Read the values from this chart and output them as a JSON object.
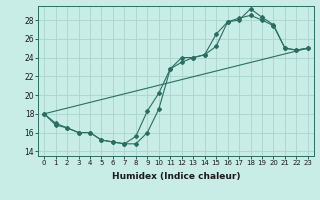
{
  "xlabel": "Humidex (Indice chaleur)",
  "bg_color": "#c8ece6",
  "line_color": "#2a6e62",
  "grid_color": "#a8d4cc",
  "xlim": [
    -0.5,
    23.5
  ],
  "ylim": [
    13.5,
    29.5
  ],
  "yticks": [
    14,
    16,
    18,
    20,
    22,
    24,
    26,
    28
  ],
  "xticks": [
    0,
    1,
    2,
    3,
    4,
    5,
    6,
    7,
    8,
    9,
    10,
    11,
    12,
    13,
    14,
    15,
    16,
    17,
    18,
    19,
    20,
    21,
    22,
    23
  ],
  "series1_x": [
    0,
    1,
    2,
    3,
    4,
    5,
    6,
    7,
    8,
    9,
    10,
    11,
    12,
    13,
    14,
    15,
    16,
    17,
    18,
    19,
    20,
    21,
    22,
    23
  ],
  "series1_y": [
    18.0,
    17.0,
    16.5,
    16.0,
    16.0,
    15.2,
    15.0,
    14.8,
    14.8,
    16.0,
    18.5,
    22.8,
    23.5,
    24.0,
    24.3,
    25.2,
    27.8,
    28.0,
    29.2,
    28.3,
    27.5,
    25.0,
    24.8,
    25.0
  ],
  "series2_x": [
    0,
    1,
    2,
    3,
    4,
    5,
    6,
    7,
    8,
    9,
    10,
    11,
    12,
    13,
    14,
    15,
    16,
    17,
    18,
    19,
    20,
    21,
    22,
    23
  ],
  "series2_y": [
    18.0,
    16.8,
    16.5,
    16.0,
    16.0,
    15.2,
    15.0,
    14.8,
    15.6,
    18.3,
    20.2,
    22.8,
    24.0,
    24.0,
    24.3,
    26.5,
    27.8,
    28.2,
    28.5,
    28.0,
    27.4,
    25.0,
    24.8,
    25.0
  ],
  "series3_x": [
    0,
    23
  ],
  "series3_y": [
    18.0,
    25.0
  ]
}
